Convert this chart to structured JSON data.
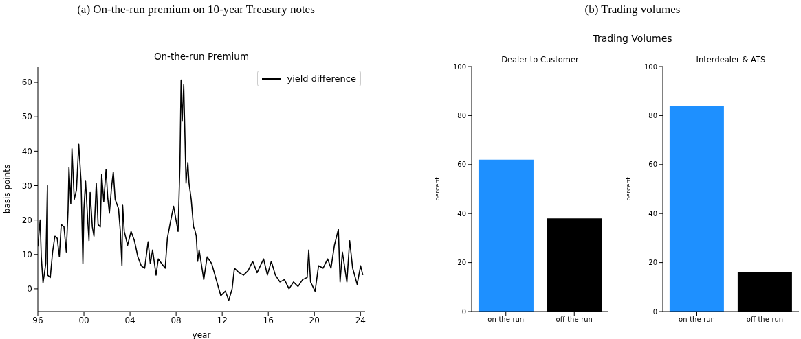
{
  "chart_data": [
    {
      "type": "line",
      "title": "On-the-run Premium",
      "xlabel": "year",
      "ylabel": "basis points",
      "annotations": [
        "(a) On-the-run premium on 10-year Treasury notes"
      ],
      "x": [
        1996.0,
        1996.2,
        1996.3,
        1996.45,
        1996.69,
        1996.83,
        1996.85,
        1997.08,
        1997.28,
        1997.48,
        1997.68,
        1997.87,
        1998.03,
        1998.27,
        1998.47,
        1998.62,
        1998.7,
        1998.86,
        1998.96,
        1999.16,
        1999.35,
        1999.55,
        1999.75,
        1999.91,
        2000.0,
        2000.14,
        2000.34,
        2000.44,
        2000.54,
        2000.73,
        2000.87,
        2001.07,
        2001.23,
        2001.42,
        2001.54,
        2001.72,
        2001.92,
        2002.06,
        2002.21,
        2002.41,
        2002.55,
        2002.71,
        2003.0,
        2003.16,
        2003.3,
        2003.36,
        2003.5,
        2003.79,
        2004.09,
        2004.38,
        2004.68,
        2004.97,
        2005.27,
        2005.57,
        2005.76,
        2005.96,
        2006.26,
        2006.45,
        2006.75,
        2007.05,
        2007.24,
        2007.54,
        2007.78,
        2008.03,
        2008.17,
        2008.33,
        2008.43,
        2008.53,
        2008.66,
        2008.76,
        2008.86,
        2009.02,
        2009.12,
        2009.31,
        2009.51,
        2009.61,
        2009.75,
        2009.87,
        2010.0,
        2010.4,
        2010.69,
        2011.09,
        2011.48,
        2011.88,
        2012.27,
        2012.57,
        2012.86,
        2013.06,
        2013.46,
        2013.85,
        2014.25,
        2014.64,
        2015.03,
        2015.59,
        2015.92,
        2016.26,
        2016.61,
        2017.01,
        2017.4,
        2017.8,
        2018.19,
        2018.58,
        2018.98,
        2019.37,
        2019.51,
        2019.67,
        2020.06,
        2020.36,
        2020.75,
        2021.15,
        2021.44,
        2021.74,
        2022.08,
        2022.23,
        2022.43,
        2022.82,
        2023.06,
        2023.32,
        2023.71,
        2024.01,
        2024.2
      ],
      "series": [
        {
          "name": "yield difference",
          "color": "#000000",
          "values": [
            12.3,
            20,
            9.3,
            1.7,
            7.3,
            30,
            4,
            3.3,
            10.7,
            15.3,
            14.7,
            9.3,
            18.7,
            18,
            10.7,
            22.7,
            35.3,
            24.7,
            40.7,
            26,
            28.7,
            42,
            31.3,
            7.3,
            23.3,
            31.3,
            19.3,
            14,
            28,
            18,
            15.3,
            30.7,
            18.7,
            18,
            33.3,
            25.3,
            34.7,
            26.7,
            22,
            30,
            34,
            26,
            23.3,
            16.7,
            6.7,
            24.3,
            16.7,
            12.7,
            16.7,
            14,
            9.3,
            6.7,
            6,
            13.7,
            7.3,
            11.3,
            4,
            8.7,
            7.3,
            6,
            14.7,
            20,
            24,
            19.3,
            16.7,
            36,
            60.7,
            48.7,
            59.3,
            45.3,
            30.7,
            36.7,
            30.7,
            26,
            18,
            17.3,
            15.3,
            8,
            11.3,
            2.7,
            9.3,
            7.3,
            2.7,
            -2,
            -0.7,
            -3.3,
            0,
            6,
            4.7,
            4,
            5.3,
            8,
            4.7,
            8.7,
            4,
            8,
            4,
            2,
            2.7,
            0,
            2,
            0.7,
            2.7,
            3.3,
            11.3,
            2,
            -0.7,
            6.7,
            6,
            8.7,
            6,
            12.7,
            17.3,
            2,
            10.7,
            2,
            14,
            6,
            1.3,
            6.7,
            4
          ]
        }
      ],
      "xlim": [
        1996,
        2024.4
      ],
      "xticks": [
        {
          "value": 1996,
          "label": "96"
        },
        {
          "value": 2000,
          "label": "00"
        },
        {
          "value": 2004,
          "label": "04"
        },
        {
          "value": 2008,
          "label": "08"
        },
        {
          "value": 2012,
          "label": "12"
        },
        {
          "value": 2016,
          "label": "16"
        },
        {
          "value": 2020,
          "label": "20"
        },
        {
          "value": 2024,
          "label": "24"
        }
      ],
      "ylim": [
        -6.6,
        64.6
      ],
      "yticks": [
        0,
        10,
        20,
        30,
        40,
        50,
        60
      ],
      "legend": "top right"
    },
    {
      "type": "bar",
      "title": "Dealer to Customer",
      "ylabel": "percent",
      "annotations": [
        "(b) Trading volumes",
        "Trading Volumes"
      ],
      "categories": [
        "on-the-run",
        "off-the-run"
      ],
      "values": [
        62,
        38
      ],
      "colors": [
        "#1e90ff",
        "#000000"
      ],
      "ylim": [
        0,
        100
      ],
      "yticks": [
        0,
        20,
        40,
        60,
        80,
        100
      ]
    },
    {
      "type": "bar",
      "title": "Interdealer & ATS",
      "ylabel": "percent",
      "categories": [
        "on-the-run",
        "off-the-run"
      ],
      "values": [
        84,
        16
      ],
      "colors": [
        "#1e90ff",
        "#000000"
      ],
      "ylim": [
        0,
        100
      ],
      "yticks": [
        0,
        20,
        40,
        60,
        80,
        100
      ]
    }
  ]
}
